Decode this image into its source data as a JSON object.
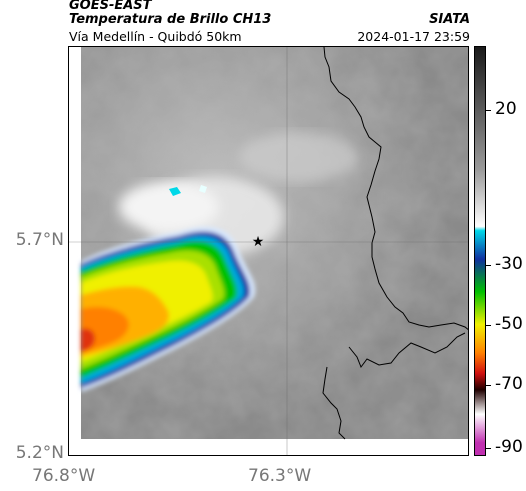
{
  "header": {
    "satellite": "GOES-EAST",
    "product": "Temperatura de Brillo CH13",
    "organization": "SIATA",
    "region": "Vía Medellín - Quibdó 50km",
    "datetime": "2024-01-17 23:59"
  },
  "map": {
    "lat_ticks": [
      "5.7°N",
      "5.2°N"
    ],
    "lon_ticks": [
      "76.8°W",
      "76.3°W"
    ],
    "marker_icon": "star-icon"
  },
  "colorbar": {
    "labels": [
      "20",
      "-30",
      "-50",
      "-70",
      "-90"
    ],
    "colors": {
      "top": "#1a1a1a",
      "gray": "#9a9a9a",
      "white": "#ffffff",
      "cyan": "#00d8e8",
      "blue": "#1030a0",
      "green": "#00c000",
      "yellow": "#f0f000",
      "orange": "#ff8000",
      "red": "#d01010",
      "dark": "#200000",
      "magenta": "#c030b0"
    }
  }
}
